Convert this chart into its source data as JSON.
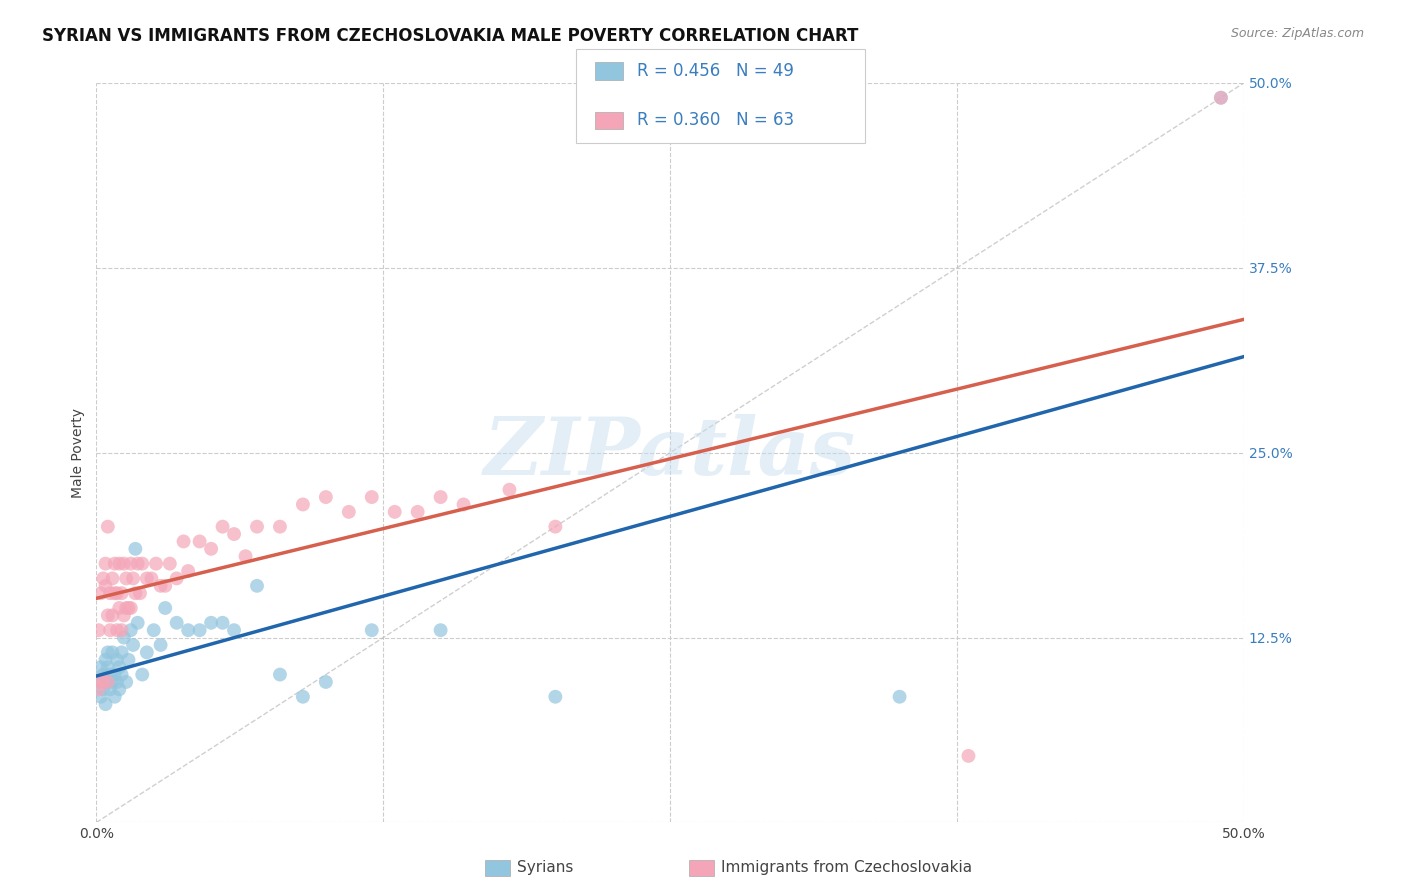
{
  "title": "SYRIAN VS IMMIGRANTS FROM CZECHOSLOVAKIA MALE POVERTY CORRELATION CHART",
  "source": "Source: ZipAtlas.com",
  "ylabel": "Male Poverty",
  "xlim": [
    0.0,
    0.5
  ],
  "ylim": [
    0.0,
    0.5
  ],
  "xtick_vals": [
    0.0,
    0.125,
    0.25,
    0.375,
    0.5
  ],
  "ytick_vals": [
    0.0,
    0.125,
    0.25,
    0.375,
    0.5
  ],
  "xtick_labels": [
    "0.0%",
    "",
    "",
    "",
    "50.0%"
  ],
  "ytick_labels": [
    "",
    "12.5%",
    "25.0%",
    "37.5%",
    "50.0%"
  ],
  "watermark": "ZIPatlas",
  "legend_label1": "Syrians",
  "legend_label2": "Immigrants from Czechoslovakia",
  "color_blue": "#92c5de",
  "color_pink": "#f4a6b8",
  "color_diag": "#bbbbbb",
  "color_trendline_blue": "#2166ac",
  "color_trendline_pink": "#d6604d",
  "grid_color": "#cccccc",
  "title_fontsize": 12,
  "axis_label_fontsize": 10,
  "tick_fontsize": 10,
  "source_fontsize": 9,
  "syrians_x": [
    0.001,
    0.002,
    0.002,
    0.003,
    0.003,
    0.004,
    0.004,
    0.005,
    0.005,
    0.005,
    0.006,
    0.006,
    0.007,
    0.007,
    0.008,
    0.008,
    0.009,
    0.009,
    0.01,
    0.01,
    0.011,
    0.011,
    0.012,
    0.013,
    0.014,
    0.015,
    0.016,
    0.017,
    0.018,
    0.02,
    0.022,
    0.025,
    0.028,
    0.03,
    0.035,
    0.04,
    0.045,
    0.05,
    0.055,
    0.06,
    0.07,
    0.08,
    0.09,
    0.1,
    0.12,
    0.15,
    0.2,
    0.35,
    0.49
  ],
  "syrians_y": [
    0.095,
    0.085,
    0.105,
    0.09,
    0.1,
    0.11,
    0.08,
    0.095,
    0.105,
    0.115,
    0.09,
    0.1,
    0.095,
    0.115,
    0.085,
    0.1,
    0.095,
    0.11,
    0.09,
    0.105,
    0.1,
    0.115,
    0.125,
    0.095,
    0.11,
    0.13,
    0.12,
    0.185,
    0.135,
    0.1,
    0.115,
    0.13,
    0.12,
    0.145,
    0.135,
    0.13,
    0.13,
    0.135,
    0.135,
    0.13,
    0.16,
    0.1,
    0.085,
    0.095,
    0.13,
    0.13,
    0.085,
    0.085,
    0.49
  ],
  "czech_x": [
    0.001,
    0.001,
    0.002,
    0.002,
    0.003,
    0.003,
    0.004,
    0.004,
    0.005,
    0.005,
    0.005,
    0.006,
    0.006,
    0.007,
    0.007,
    0.008,
    0.008,
    0.009,
    0.009,
    0.01,
    0.01,
    0.011,
    0.011,
    0.012,
    0.012,
    0.013,
    0.013,
    0.014,
    0.015,
    0.015,
    0.016,
    0.017,
    0.018,
    0.019,
    0.02,
    0.022,
    0.024,
    0.026,
    0.028,
    0.03,
    0.032,
    0.035,
    0.038,
    0.04,
    0.045,
    0.05,
    0.055,
    0.06,
    0.065,
    0.07,
    0.08,
    0.09,
    0.1,
    0.11,
    0.12,
    0.13,
    0.14,
    0.15,
    0.16,
    0.18,
    0.2,
    0.38,
    0.49
  ],
  "czech_y": [
    0.09,
    0.13,
    0.095,
    0.155,
    0.095,
    0.165,
    0.16,
    0.175,
    0.095,
    0.14,
    0.2,
    0.13,
    0.155,
    0.14,
    0.165,
    0.155,
    0.175,
    0.13,
    0.155,
    0.145,
    0.175,
    0.13,
    0.155,
    0.14,
    0.175,
    0.145,
    0.165,
    0.145,
    0.145,
    0.175,
    0.165,
    0.155,
    0.175,
    0.155,
    0.175,
    0.165,
    0.165,
    0.175,
    0.16,
    0.16,
    0.175,
    0.165,
    0.19,
    0.17,
    0.19,
    0.185,
    0.2,
    0.195,
    0.18,
    0.2,
    0.2,
    0.215,
    0.22,
    0.21,
    0.22,
    0.21,
    0.21,
    0.22,
    0.215,
    0.225,
    0.2,
    0.045,
    0.49
  ]
}
